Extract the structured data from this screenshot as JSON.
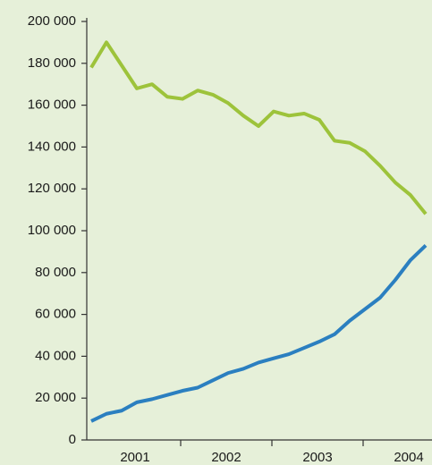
{
  "chart_data": {
    "type": "line",
    "categories": [
      "2001",
      null,
      null,
      null,
      null,
      null,
      "2002",
      null,
      null,
      null,
      null,
      null,
      "2003",
      null,
      null,
      null,
      null,
      null,
      "2004",
      null,
      null,
      null,
      null,
      null
    ],
    "series": [
      {
        "color": "#9dc33b",
        "values": [
          178000,
          190000,
          179000,
          168000,
          170000,
          164000,
          163000,
          167000,
          165000,
          161000,
          155000,
          150000,
          157000,
          155000,
          156000,
          153000,
          143000,
          142000,
          138000,
          131000,
          123000,
          117000,
          108000,
          null
        ]
      },
      {
        "color": "#2b7fc0",
        "values": [
          9000,
          12500,
          14000,
          18000,
          19500,
          21500,
          23500,
          25000,
          28500,
          32000,
          34000,
          37000,
          39000,
          41000,
          44000,
          47000,
          50500,
          57000,
          62500,
          68000,
          76500,
          86000,
          93000,
          null
        ]
      }
    ],
    "ylim": [
      0,
      200000
    ],
    "yticks": [
      0,
      {
        "value": 20000,
        "label": "20 000"
      },
      {
        "value": 40000,
        "label": "40 000"
      },
      {
        "value": 60000,
        "label": "60 000"
      },
      {
        "value": 80000,
        "label": "80 000"
      },
      {
        "value": 100000,
        "label": "100 000"
      },
      {
        "value": 120000,
        "label": "120 000"
      },
      {
        "value": 140000,
        "label": "140 000"
      },
      {
        "value": 160000,
        "label": "160 000"
      },
      {
        "value": 180000,
        "label": "180 000"
      },
      {
        "value": 200000,
        "label": "200 000"
      }
    ]
  }
}
